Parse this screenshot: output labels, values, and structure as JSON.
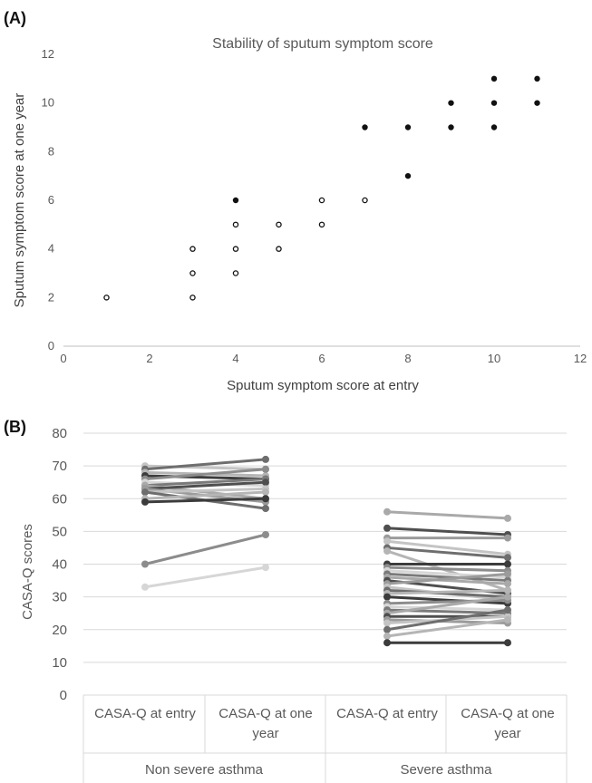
{
  "panel_a_label": "(A)",
  "panel_b_label": "(B)",
  "chart_data": [
    {
      "type": "scatter",
      "title": "Stability of sputum symptom score",
      "xlabel": "Sputum symptom score at entry",
      "ylabel": "Sputum symptom score at one year",
      "xlim": [
        0,
        12
      ],
      "ylim": [
        0,
        12
      ],
      "xticks": [
        0,
        2,
        4,
        6,
        8,
        10,
        12
      ],
      "yticks": [
        0,
        2,
        4,
        6,
        8,
        10,
        12
      ],
      "grid": false,
      "series": [
        {
          "marker": "open-circle",
          "points": [
            [
              1,
              2
            ],
            [
              3,
              2
            ],
            [
              3,
              3
            ],
            [
              3,
              4
            ],
            [
              4,
              3
            ],
            [
              4,
              4
            ],
            [
              4,
              5
            ],
            [
              5,
              4
            ],
            [
              5,
              5
            ],
            [
              6,
              5
            ],
            [
              6,
              6
            ],
            [
              7,
              6
            ]
          ]
        },
        {
          "marker": "filled-circle",
          "points": [
            [
              4,
              6
            ],
            [
              7,
              9
            ],
            [
              8,
              7
            ],
            [
              8,
              9
            ],
            [
              9,
              9
            ],
            [
              9,
              10
            ],
            [
              10,
              9
            ],
            [
              10,
              10
            ],
            [
              10,
              11
            ],
            [
              11,
              10
            ],
            [
              11,
              11
            ]
          ]
        }
      ]
    },
    {
      "type": "line",
      "xlabel": "",
      "ylabel": "CASA-Q scores",
      "ylim": [
        0,
        80
      ],
      "yticks": [
        0,
        10,
        20,
        30,
        40,
        50,
        60,
        70,
        80
      ],
      "grid": true,
      "groups": [
        {
          "name": "Non severe asthma",
          "categories": [
            "CASA-Q at entry",
            "CASA-Q at one year"
          ]
        },
        {
          "name": "Severe asthma",
          "categories": [
            "CASA-Q at entry",
            "CASA-Q at one year"
          ]
        }
      ],
      "colors": [
        "#c4c4c4",
        "#a9a9a9",
        "#8c8c8c",
        "#6e6e6e",
        "#4f4f4f",
        "#d6d6d6",
        "#b5b5b5",
        "#9b9b9b",
        "#7a7a7a",
        "#3c3c3c"
      ],
      "series_groups": [
        {
          "group": "Non severe asthma",
          "pairs": [
            [
              70,
              69
            ],
            [
              69,
              72
            ],
            [
              68,
              67
            ],
            [
              67,
              66
            ],
            [
              66,
              69
            ],
            [
              65,
              64
            ],
            [
              64,
              66
            ],
            [
              64,
              60
            ],
            [
              63,
              65
            ],
            [
              63,
              59
            ],
            [
              62,
              63
            ],
            [
              62,
              57
            ],
            [
              60,
              62
            ],
            [
              59,
              60
            ],
            [
              40,
              49
            ],
            [
              33,
              39
            ]
          ]
        },
        {
          "group": "Severe asthma",
          "pairs": [
            [
              56,
              54
            ],
            [
              51,
              49
            ],
            [
              48,
              48
            ],
            [
              47,
              43
            ],
            [
              45,
              42
            ],
            [
              44,
              32
            ],
            [
              40,
              40
            ],
            [
              39,
              38
            ],
            [
              38,
              36
            ],
            [
              37,
              35
            ],
            [
              36,
              34
            ],
            [
              35,
              31
            ],
            [
              34,
              37
            ],
            [
              33,
              29
            ],
            [
              32,
              30
            ],
            [
              31,
              32
            ],
            [
              30,
              28
            ],
            [
              28,
              29
            ],
            [
              27,
              26
            ],
            [
              26,
              25
            ],
            [
              25,
              30
            ],
            [
              24,
              24
            ],
            [
              23,
              22
            ],
            [
              22,
              24
            ],
            [
              20,
              26
            ],
            [
              18,
              23
            ],
            [
              16,
              16
            ]
          ]
        }
      ]
    }
  ]
}
